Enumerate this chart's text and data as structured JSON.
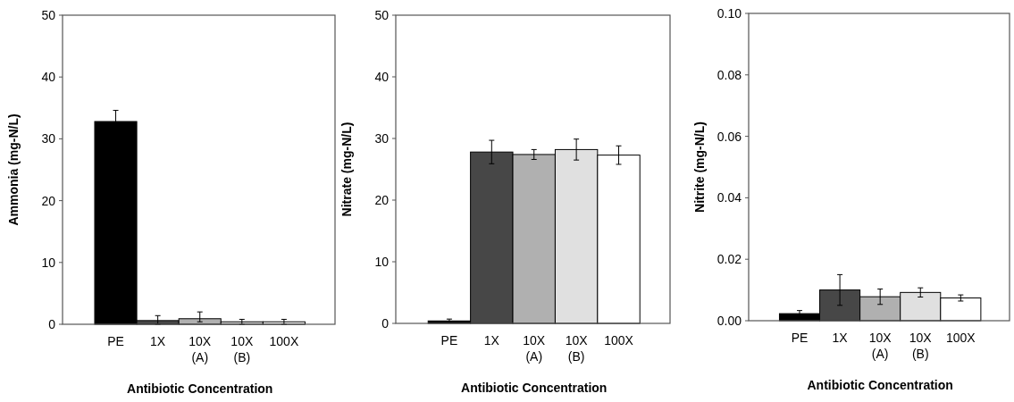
{
  "chart_data": [
    {
      "type": "bar",
      "xlabel": "Antibiotic Concentration",
      "ylabel": "Ammonia (mg-N/L)",
      "categories": [
        "PE",
        "1X",
        "10X (A)",
        "10X (B)",
        "100X"
      ],
      "values": [
        32.8,
        0.6,
        0.9,
        0.4,
        0.4
      ],
      "errors": [
        1.8,
        [
          0,
          1.4
        ],
        [
          0.4,
          2.0
        ],
        0.4,
        0.4
      ],
      "colors": [
        "#000000",
        "#474747",
        "#b0b0b0",
        "#e0e0e0",
        "#ffffff"
      ],
      "ylim": [
        0,
        50
      ],
      "yticks": [
        0,
        10,
        20,
        30,
        40,
        50
      ],
      "grid": false
    },
    {
      "type": "bar",
      "xlabel": "Antibiotic Concentration",
      "ylabel": "Nitrate (mg-N/L)",
      "categories": [
        "PE",
        "1X",
        "10X (A)",
        "10X (B)",
        "100X"
      ],
      "values": [
        0.4,
        27.8,
        27.4,
        28.2,
        27.3
      ],
      "errors": [
        0.3,
        1.9,
        0.8,
        1.7,
        1.5
      ],
      "colors": [
        "#000000",
        "#474747",
        "#b0b0b0",
        "#e0e0e0",
        "#ffffff"
      ],
      "ylim": [
        0,
        50
      ],
      "yticks": [
        0,
        10,
        20,
        30,
        40,
        50
      ],
      "grid": false
    },
    {
      "type": "bar",
      "xlabel": "Antibiotic Concentration",
      "ylabel": "Nitrite (mg-N/L)",
      "categories": [
        "PE",
        "1X",
        "10X (A)",
        "10X (B)",
        "100X"
      ],
      "values": [
        0.0023,
        0.01,
        0.0078,
        0.0092,
        0.0074
      ],
      "errors": [
        0.001,
        0.005,
        0.0025,
        0.0015,
        0.001
      ],
      "colors": [
        "#000000",
        "#474747",
        "#b0b0b0",
        "#e0e0e0",
        "#ffffff"
      ],
      "ylim": [
        0,
        0.1
      ],
      "yticks": [
        {
          "value": 0,
          "label": "0.00"
        },
        {
          "value": 0.02,
          "label": "0.02"
        },
        {
          "value": 0.04,
          "label": "0.04"
        },
        {
          "value": 0.06,
          "label": "0.06"
        },
        {
          "value": 0.08,
          "label": "0.08"
        },
        {
          "value": 0.1,
          "label": "0.10"
        }
      ],
      "grid": false
    }
  ]
}
